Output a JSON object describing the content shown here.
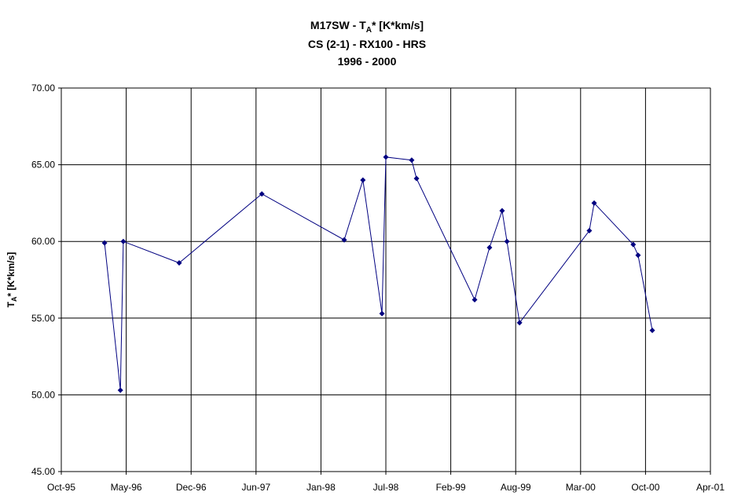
{
  "chart_data": {
    "type": "line",
    "title_parts": [
      "M17SW - T",
      "A",
      "* [K*km/s]"
    ],
    "subtitle": "CS (2-1) - RX100 - HRS",
    "period": "1996 - 2000",
    "y_label_parts": [
      "T",
      "A",
      "* [K*km/s]"
    ],
    "x": [
      35134,
      35183,
      35192,
      35365,
      35621,
      35876,
      35934,
      35993,
      36005,
      36085,
      36100,
      36280,
      36326,
      36365,
      36380,
      36419,
      36635,
      36650,
      36771,
      36786,
      36830
    ],
    "series": [
      {
        "color": "#000080",
        "values": [
          59.9,
          50.3,
          60.0,
          58.6,
          63.1,
          60.1,
          64.0,
          55.3,
          65.5,
          65.3,
          64.1,
          56.2,
          59.6,
          62.0,
          60.0,
          54.7,
          60.7,
          62.5,
          59.8,
          59.1,
          54.2
        ]
      }
    ],
    "xlim": [
      35000,
      37010
    ],
    "xticks": [
      {
        "value": 35000,
        "label": "Oct-95"
      },
      {
        "value": 35201,
        "label": "May-96"
      },
      {
        "value": 35402,
        "label": "Dec-96"
      },
      {
        "value": 35603,
        "label": "Jun-97"
      },
      {
        "value": 35804,
        "label": "Jan-98"
      },
      {
        "value": 36005,
        "label": "Jul-98"
      },
      {
        "value": 36206,
        "label": "Feb-99"
      },
      {
        "value": 36407,
        "label": "Aug-99"
      },
      {
        "value": 36608,
        "label": "Mar-00"
      },
      {
        "value": 36809,
        "label": "Oct-00"
      },
      {
        "value": 37010,
        "label": "Apr-01"
      }
    ],
    "ylim": [
      45,
      70
    ],
    "yticks": [
      {
        "value": 45,
        "label": "45.00"
      },
      {
        "value": 50,
        "label": "50.00"
      },
      {
        "value": 55,
        "label": "55.00"
      },
      {
        "value": 60,
        "label": "60.00"
      },
      {
        "value": 65,
        "label": "65.00"
      },
      {
        "value": 70,
        "label": "70.00"
      }
    ],
    "grid": true
  }
}
